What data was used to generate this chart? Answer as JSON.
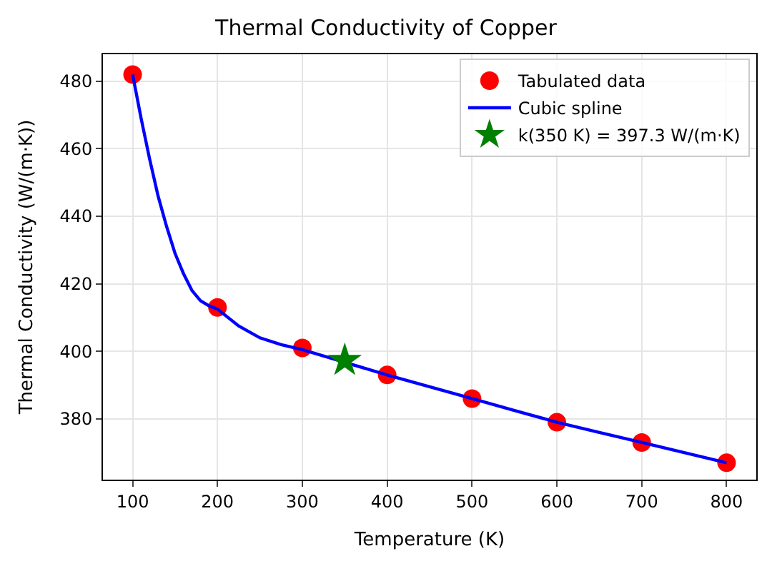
{
  "chart_data": {
    "type": "scatter",
    "title": "Thermal Conductivity of Copper",
    "xlabel": "Temperature (K)",
    "ylabel": "Thermal Conductivity (W/(m·K))",
    "xlim": [
      65,
      835
    ],
    "ylim": [
      362,
      488
    ],
    "xticks": [
      100,
      200,
      300,
      400,
      500,
      600,
      700,
      800
    ],
    "yticks": [
      380,
      400,
      420,
      440,
      460,
      480
    ],
    "grid": true,
    "legend": "top right",
    "series": [
      {
        "name": "Tabulated data",
        "marker": "circle",
        "color": "#ff0000",
        "x": [
          100,
          200,
          300,
          400,
          500,
          600,
          700,
          800
        ],
        "values": [
          482,
          413,
          401,
          393,
          386,
          379,
          373,
          367
        ]
      },
      {
        "name": "Cubic spline",
        "type": "line",
        "marker": "none",
        "line_style": "solid",
        "color": "#0000ff",
        "x": [
          100,
          110,
          120,
          130,
          140,
          150,
          160,
          170,
          180,
          190,
          200,
          225,
          250,
          275,
          300,
          400,
          450,
          500,
          550,
          600,
          650,
          700,
          750,
          800
        ],
        "values": [
          482,
          469,
          457,
          446,
          437,
          429,
          423,
          418,
          415,
          413.5,
          412.5,
          407.5,
          404,
          402,
          400.5,
          393,
          389.5,
          386,
          382.5,
          379,
          376,
          373,
          370,
          367
        ]
      },
      {
        "name": "k(350 K) = 397.3 W/(m·K)",
        "marker": "star",
        "color": "#008000",
        "x": [
          350
        ],
        "values": [
          397.3
        ]
      }
    ]
  }
}
